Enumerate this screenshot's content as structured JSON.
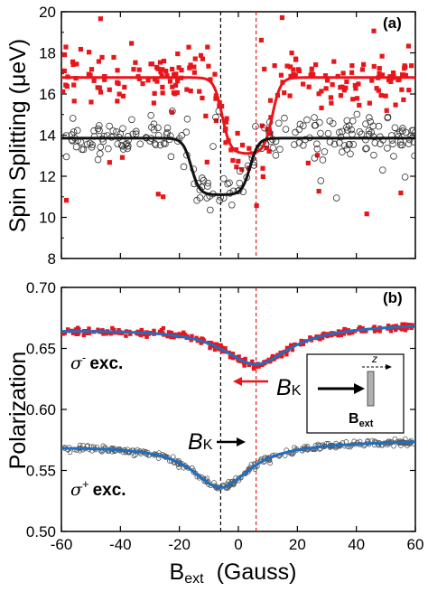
{
  "chart_data": [
    {
      "panel": "(a)",
      "type": "scatter",
      "ylabel": "Spin Splitting (μeV)",
      "xlim": [
        -60,
        60
      ],
      "ylim": [
        8,
        20
      ],
      "yticks": [
        "8",
        "10",
        "12",
        "14",
        "16",
        "18",
        "20"
      ],
      "vlines": [
        {
          "x": -6,
          "color": "#000000"
        },
        {
          "x": 6,
          "color": "#e02020"
        }
      ],
      "series": [
        {
          "marker": "filled-square",
          "color": "#e8161b",
          "fit": {
            "baseline": 16.8,
            "min": 13.1,
            "center": 3,
            "half_width": 8.5
          }
        },
        {
          "marker": "open-circle",
          "color": "#333333",
          "fit": {
            "baseline": 13.85,
            "min": 11.1,
            "center": -6,
            "half_width": 10
          }
        }
      ]
    },
    {
      "panel": "(b)",
      "type": "scatter",
      "ylabel": "Polarization",
      "xlabel": "B",
      "xlabel_sub": "ext",
      "xlabel_unit": "(Gauss)",
      "xlim": [
        -60,
        60
      ],
      "ylim": [
        0.5,
        0.7
      ],
      "xticks": [
        "-60",
        "-40",
        "-20",
        "0",
        "20",
        "40",
        "60"
      ],
      "yticks": [
        "0.50",
        "0.55",
        "0.60",
        "0.65",
        "0.70"
      ],
      "vlines": [
        {
          "x": -6,
          "color": "#000000"
        },
        {
          "x": 6,
          "color": "#e02020"
        }
      ],
      "series": [
        {
          "label_sigma": "σ",
          "label_sign": "-",
          "label_text": "exc.",
          "marker": "filled-square",
          "color": "#e8161b",
          "fit_color": "#1f6fc0",
          "fit": {
            "baseline": 0.668,
            "depth": 0.031,
            "center": 6,
            "gamma": 14
          }
        },
        {
          "label_sigma": "σ",
          "label_sign": "+",
          "label_text": "exc.",
          "marker": "open-circle",
          "color": "#555555",
          "fit_color": "#1f6fc0",
          "fit": {
            "baseline": 0.572,
            "depth": 0.036,
            "center": -6,
            "gamma": 12
          }
        }
      ]
    }
  ],
  "annotations": {
    "panel_a_label": "(a)",
    "panel_b_label": "(b)",
    "bk_main": "B",
    "bk_sub": "K",
    "inset_axis": "z",
    "inset_label": "B",
    "inset_label_sub": "ext"
  }
}
